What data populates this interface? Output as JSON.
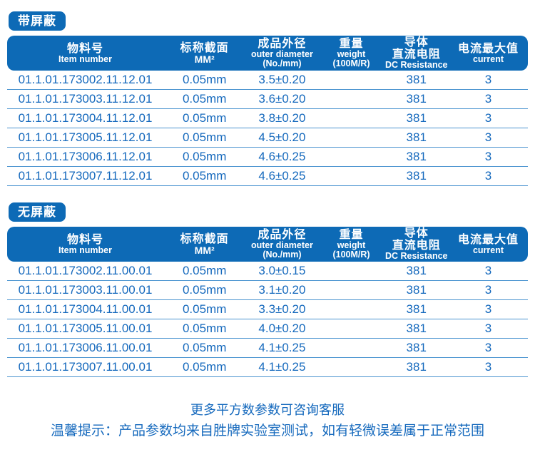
{
  "colors": {
    "primary": "#0d6ab6",
    "text_blue": "#1569bd",
    "row_line": "#4b94d0",
    "header_text": "#ffffff",
    "page_bg": "#ffffff"
  },
  "tables": [
    {
      "badge": "带屏蔽",
      "columns": [
        {
          "name": "item-number",
          "lines": [
            {
              "text": "物料号",
              "lang": "zh"
            },
            {
              "text": "Item number",
              "lang": "en"
            }
          ]
        },
        {
          "name": "nominal-section",
          "lines": [
            {
              "text": "标称截面",
              "lang": "zh"
            },
            {
              "text": "MM²",
              "lang": "enlg"
            }
          ]
        },
        {
          "name": "outer-diameter",
          "lines": [
            {
              "text": "成品外径",
              "lang": "zh"
            },
            {
              "text": "outer diameter",
              "lang": "en"
            },
            {
              "text": "(No./mm)",
              "lang": "en"
            }
          ]
        },
        {
          "name": "weight",
          "lines": [
            {
              "text": "重量",
              "lang": "zh"
            },
            {
              "text": "weight",
              "lang": "en"
            },
            {
              "text": "(100M/R)",
              "lang": "en"
            }
          ]
        },
        {
          "name": "dc-resistance",
          "lines": [
            {
              "text": "导体",
              "lang": "zh"
            },
            {
              "text": "直流电阻",
              "lang": "zh"
            },
            {
              "text": "DC Resistance",
              "lang": "en"
            }
          ]
        },
        {
          "name": "max-current",
          "lines": [
            {
              "text": "电流最大值",
              "lang": "zh"
            },
            {
              "text": "current",
              "lang": "en"
            }
          ]
        }
      ],
      "rows": [
        [
          "01.1.01.173002.11.12.01",
          "0.05mm",
          "3.5±0.20",
          "",
          "381",
          "3"
        ],
        [
          "01.1.01.173003.11.12.01",
          "0.05mm",
          "3.6±0.20",
          "",
          "381",
          "3"
        ],
        [
          "01.1.01.173004.11.12.01",
          "0.05mm",
          "3.8±0.20",
          "",
          "381",
          "3"
        ],
        [
          "01.1.01.173005.11.12.01",
          "0.05mm",
          "4.5±0.20",
          "",
          "381",
          "3"
        ],
        [
          "01.1.01.173006.11.12.01",
          "0.05mm",
          "4.6±0.25",
          "",
          "381",
          "3"
        ],
        [
          "01.1.01.173007.11.12.01",
          "0.05mm",
          "4.6±0.25",
          "",
          "381",
          "3"
        ]
      ]
    },
    {
      "badge": "无屏蔽",
      "columns": [
        {
          "name": "item-number",
          "lines": [
            {
              "text": "物料号",
              "lang": "zh"
            },
            {
              "text": "Item number",
              "lang": "en"
            }
          ]
        },
        {
          "name": "nominal-section",
          "lines": [
            {
              "text": "标称截面",
              "lang": "zh"
            },
            {
              "text": "MM²",
              "lang": "enlg"
            }
          ]
        },
        {
          "name": "outer-diameter",
          "lines": [
            {
              "text": "成品外径",
              "lang": "zh"
            },
            {
              "text": "outer diameter",
              "lang": "en"
            },
            {
              "text": "(No./mm)",
              "lang": "en"
            }
          ]
        },
        {
          "name": "weight",
          "lines": [
            {
              "text": "重量",
              "lang": "zh"
            },
            {
              "text": "weight",
              "lang": "en"
            },
            {
              "text": "(100M/R)",
              "lang": "en"
            }
          ]
        },
        {
          "name": "dc-resistance",
          "lines": [
            {
              "text": "导体",
              "lang": "zh"
            },
            {
              "text": "直流电阻",
              "lang": "zh"
            },
            {
              "text": "DC Resistance",
              "lang": "en"
            }
          ]
        },
        {
          "name": "max-current",
          "lines": [
            {
              "text": "电流最大值",
              "lang": "zh"
            },
            {
              "text": "current",
              "lang": "en"
            }
          ]
        }
      ],
      "rows": [
        [
          "01.1.01.173002.11.00.01",
          "0.05mm",
          "3.0±0.15",
          "",
          "381",
          "3"
        ],
        [
          "01.1.01.173003.11.00.01",
          "0.05mm",
          "3.1±0.20",
          "",
          "381",
          "3"
        ],
        [
          "01.1.01.173004.11.00.01",
          "0.05mm",
          "3.3±0.20",
          "",
          "381",
          "3"
        ],
        [
          "01.1.01.173005.11.00.01",
          "0.05mm",
          "4.0±0.20",
          "",
          "381",
          "3"
        ],
        [
          "01.1.01.173006.11.00.01",
          "0.05mm",
          "4.1±0.25",
          "",
          "381",
          "3"
        ],
        [
          "01.1.01.173007.11.00.01",
          "0.05mm",
          "4.1±0.25",
          "",
          "381",
          "3"
        ]
      ]
    }
  ],
  "footer": {
    "line1": "更多平方数参数可咨询客服",
    "line2": "温馨提示：产品参数均来自胜牌实验室测试，如有轻微误差属于正常范围"
  }
}
